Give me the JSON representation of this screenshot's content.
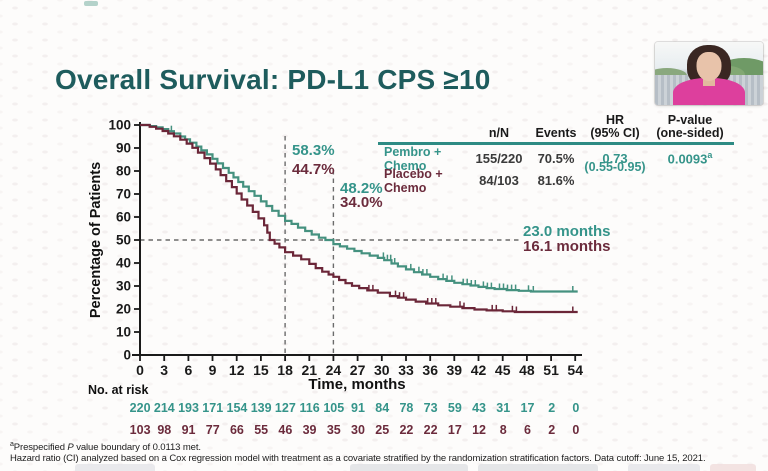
{
  "slide": {
    "title": "Overall Survival: PD-L1 CPS ≥10"
  },
  "results_table": {
    "col_headers": {
      "n": "n/N",
      "events": "Events",
      "hr1": "HR",
      "hr2": "(95% CI)",
      "p1": "P-value",
      "p2": "(one-sided)"
    },
    "pembro": {
      "label": "Pembro + Chemo",
      "n": "155/220",
      "events": "70.5%",
      "hr": "0.73",
      "p": "0.0093",
      "p_sup": "a"
    },
    "placebo": {
      "label": "Placebo + Chemo",
      "n": "84/103",
      "events": "81.6%"
    },
    "hr_ci": "(0.55-0.95)"
  },
  "annotations": {
    "rate18_pembro": "58.3%",
    "rate18_placebo": "44.7%",
    "rate24_pembro": "48.2%",
    "rate24_placebo": "34.0%",
    "median_pembro": "23.0 months",
    "median_placebo": "16.1 months"
  },
  "axes": {
    "x_label": "Time, months",
    "y_label": "Percentage of Patients"
  },
  "risk_table": {
    "label": "No. at risk",
    "pembro_counts": [
      220,
      214,
      193,
      171,
      154,
      139,
      127,
      116,
      105,
      91,
      84,
      78,
      73,
      59,
      43,
      31,
      17,
      2,
      0
    ],
    "placebo_counts": [
      103,
      98,
      91,
      77,
      66,
      55,
      46,
      39,
      35,
      30,
      25,
      22,
      22,
      17,
      12,
      8,
      6,
      2,
      0
    ]
  },
  "footnotes": {
    "line1_sup": "a",
    "line1_pre": "Prespecified ",
    "line1_italic": "P",
    "line1_post": " value boundary of 0.0113 met.",
    "line2": "Hazard ratio (CI) analyzed based on a Cox regression model with treatment as a covariate stratified by the randomization stratification factors. Data cutoff: June 15, 2021."
  },
  "colors": {
    "pembro": "#45917F",
    "pembro_text": "#35948A",
    "placebo": "#6B2638",
    "placebo_text": "#6B2B3C",
    "title_teal": "#1E5C5D",
    "table_rule": "#2E8B84",
    "dashed_line": "#6B6B6B"
  },
  "chart_data": {
    "type": "line",
    "subtype": "kaplan-meier",
    "title": "Overall Survival: PD-L1 CPS ≥10",
    "xlabel": "Time, months",
    "ylabel": "Percentage of Patients",
    "xlim": [
      0,
      54
    ],
    "ylim": [
      0,
      100
    ],
    "x_ticks": [
      0,
      3,
      6,
      9,
      12,
      15,
      18,
      21,
      24,
      27,
      30,
      33,
      36,
      39,
      42,
      45,
      48,
      51,
      54
    ],
    "y_ticks": [
      0,
      10,
      20,
      30,
      40,
      50,
      60,
      70,
      80,
      90,
      100
    ],
    "grid": false,
    "legend_position": "table-top-right",
    "reference_lines": {
      "horizontal_pct": 50,
      "vertical_months": [
        18,
        24
      ]
    },
    "series": [
      {
        "name": "Pembro + Chemo",
        "color": "#45917F",
        "n_over_N": "155/220",
        "events_pct": 70.5,
        "median_months": 23.0,
        "rate_18mo_pct": 58.3,
        "rate_24mo_pct": 48.2,
        "steps": [
          [
            0,
            100
          ],
          [
            1.2,
            99.5
          ],
          [
            2,
            99
          ],
          [
            2.8,
            98.2
          ],
          [
            3.5,
            97.3
          ],
          [
            4.2,
            96.3
          ],
          [
            5,
            95
          ],
          [
            5.6,
            93.8
          ],
          [
            6.2,
            92.3
          ],
          [
            7,
            90.6
          ],
          [
            7.6,
            89
          ],
          [
            8.3,
            87.2
          ],
          [
            9,
            85.3
          ],
          [
            9.6,
            83.3
          ],
          [
            10.3,
            81.3
          ],
          [
            11,
            79.2
          ],
          [
            11.6,
            77.2
          ],
          [
            12.2,
            75.2
          ],
          [
            12.8,
            73.2
          ],
          [
            13.5,
            71.2
          ],
          [
            14.2,
            69.2
          ],
          [
            15,
            66.8
          ],
          [
            15.7,
            64.8
          ],
          [
            16.4,
            62.7
          ],
          [
            17.2,
            60.5
          ],
          [
            18,
            58.3
          ],
          [
            18.8,
            57
          ],
          [
            19.6,
            55.4
          ],
          [
            20.5,
            53.9
          ],
          [
            21.3,
            52.4
          ],
          [
            22.2,
            51
          ],
          [
            23,
            50
          ],
          [
            24,
            48.2
          ],
          [
            24.8,
            47.2
          ],
          [
            25.7,
            46.2
          ],
          [
            26.6,
            45.2
          ],
          [
            27.5,
            44.2
          ],
          [
            28.5,
            43.2
          ],
          [
            29.5,
            42.2
          ],
          [
            30.3,
            41.2
          ],
          [
            31.2,
            39.8
          ],
          [
            32,
            38.5
          ],
          [
            33,
            37.2
          ],
          [
            34,
            36
          ],
          [
            35,
            35
          ],
          [
            36,
            34
          ],
          [
            37,
            33
          ],
          [
            38,
            32.2
          ],
          [
            39,
            31.4
          ],
          [
            40,
            30.8
          ],
          [
            41,
            30.2
          ],
          [
            42,
            29.6
          ],
          [
            43,
            29.1
          ],
          [
            44,
            28.7
          ],
          [
            45.5,
            28.2
          ],
          [
            47,
            27.9
          ],
          [
            48.5,
            27.6
          ],
          [
            54,
            27.6
          ]
        ],
        "censor_months": [
          3.9,
          30.2,
          30.7,
          31.1,
          31.6,
          33.6,
          34.6,
          35.1,
          35.6,
          37.6,
          38.1,
          38.7,
          40.1,
          40.6,
          41.1,
          41.6,
          42.6,
          43.1,
          43.6,
          44.6,
          45.1,
          45.6,
          46.1,
          46.6,
          48.2,
          48.8,
          53.7
        ]
      },
      {
        "name": "Placebo + Chemo",
        "color": "#6B2638",
        "n_over_N": "84/103",
        "events_pct": 81.6,
        "median_months": 16.1,
        "rate_18mo_pct": 44.7,
        "rate_24mo_pct": 34.0,
        "steps": [
          [
            0,
            100
          ],
          [
            1.2,
            99.2
          ],
          [
            2,
            98.4
          ],
          [
            2.8,
            97.4
          ],
          [
            3.5,
            96.3
          ],
          [
            4.2,
            95.1
          ],
          [
            5,
            93.6
          ],
          [
            5.8,
            91.9
          ],
          [
            6.5,
            90.1
          ],
          [
            7.2,
            88
          ],
          [
            8,
            85.6
          ],
          [
            8.7,
            83.2
          ],
          [
            9.4,
            80.7
          ],
          [
            10,
            78.2
          ],
          [
            10.7,
            75.6
          ],
          [
            11.4,
            73
          ],
          [
            12,
            70.2
          ],
          [
            12.6,
            67.6
          ],
          [
            13.3,
            65
          ],
          [
            14,
            62.2
          ],
          [
            14.7,
            59.4
          ],
          [
            15.4,
            56.4
          ],
          [
            15.8,
            53.2
          ],
          [
            16.1,
            50
          ],
          [
            16.7,
            48.4
          ],
          [
            17.3,
            46.8
          ],
          [
            18,
            44.7
          ],
          [
            19,
            43.2
          ],
          [
            20,
            41.6
          ],
          [
            21,
            39.6
          ],
          [
            21.8,
            37.8
          ],
          [
            22.6,
            36.2
          ],
          [
            23.4,
            35
          ],
          [
            24,
            34
          ],
          [
            24.7,
            32.6
          ],
          [
            25.5,
            31.2
          ],
          [
            26.3,
            30.1
          ],
          [
            27.2,
            29.1
          ],
          [
            28.2,
            28.1
          ],
          [
            29.5,
            27.1
          ],
          [
            31,
            25.6
          ],
          [
            32,
            24.9
          ],
          [
            33,
            24.1
          ],
          [
            34.2,
            23.2
          ],
          [
            35.5,
            22.4
          ],
          [
            37,
            21.6
          ],
          [
            38.5,
            21
          ],
          [
            40,
            20.4
          ],
          [
            41.5,
            19.8
          ],
          [
            43,
            19.4
          ],
          [
            45,
            19
          ],
          [
            46.5,
            18.7
          ],
          [
            54,
            18.7
          ]
        ],
        "censor_months": [
          28.4,
          28.9,
          31.7,
          32.2,
          32.7,
          35.7,
          36.2,
          36.7,
          39.7,
          40.2,
          43.7,
          44.2,
          46.2,
          46.7,
          53.7
        ]
      }
    ],
    "hazard_ratio": {
      "value": 0.73,
      "ci": "0.55-0.95",
      "p_one_sided": "0.0093"
    }
  }
}
